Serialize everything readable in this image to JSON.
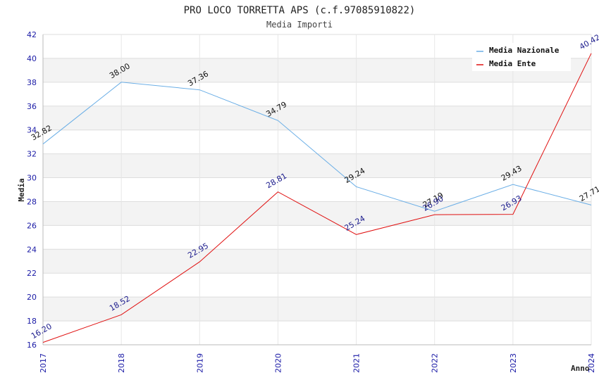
{
  "chart_data": {
    "type": "line",
    "title": "PRO LOCO TORRETTA APS (c.f.97085910822)",
    "subtitle": "Media Importi",
    "xlabel": "Anno",
    "ylabel": "Media",
    "x": [
      "2017",
      "2018",
      "2019",
      "2020",
      "2021",
      "2022",
      "2023",
      "2024"
    ],
    "ylim": [
      16,
      42
    ],
    "yticks": [
      16,
      18,
      20,
      22,
      24,
      26,
      28,
      30,
      32,
      34,
      36,
      38,
      40,
      42
    ],
    "grid": "horizontal bands",
    "legend_position": "top-right",
    "series": [
      {
        "name": "Media Nazionale",
        "color": "#6aaee6",
        "label_color": "#111111",
        "values": [
          32.82,
          38.0,
          37.36,
          34.79,
          29.24,
          27.19,
          29.43,
          27.71
        ],
        "labels": [
          "32.82",
          "38.00",
          "37.36",
          "34.79",
          "29.24",
          "27.19",
          "29.43",
          "27.71"
        ]
      },
      {
        "name": "Media Ente",
        "color": "#e01010",
        "label_color": "#1a1a8c",
        "values": [
          16.2,
          18.52,
          22.95,
          28.81,
          25.24,
          26.9,
          26.93,
          40.42
        ],
        "labels": [
          "16.20",
          "18.52",
          "22.95",
          "28.81",
          "25.24",
          "26.90",
          "26.93",
          "40.42"
        ]
      }
    ]
  }
}
